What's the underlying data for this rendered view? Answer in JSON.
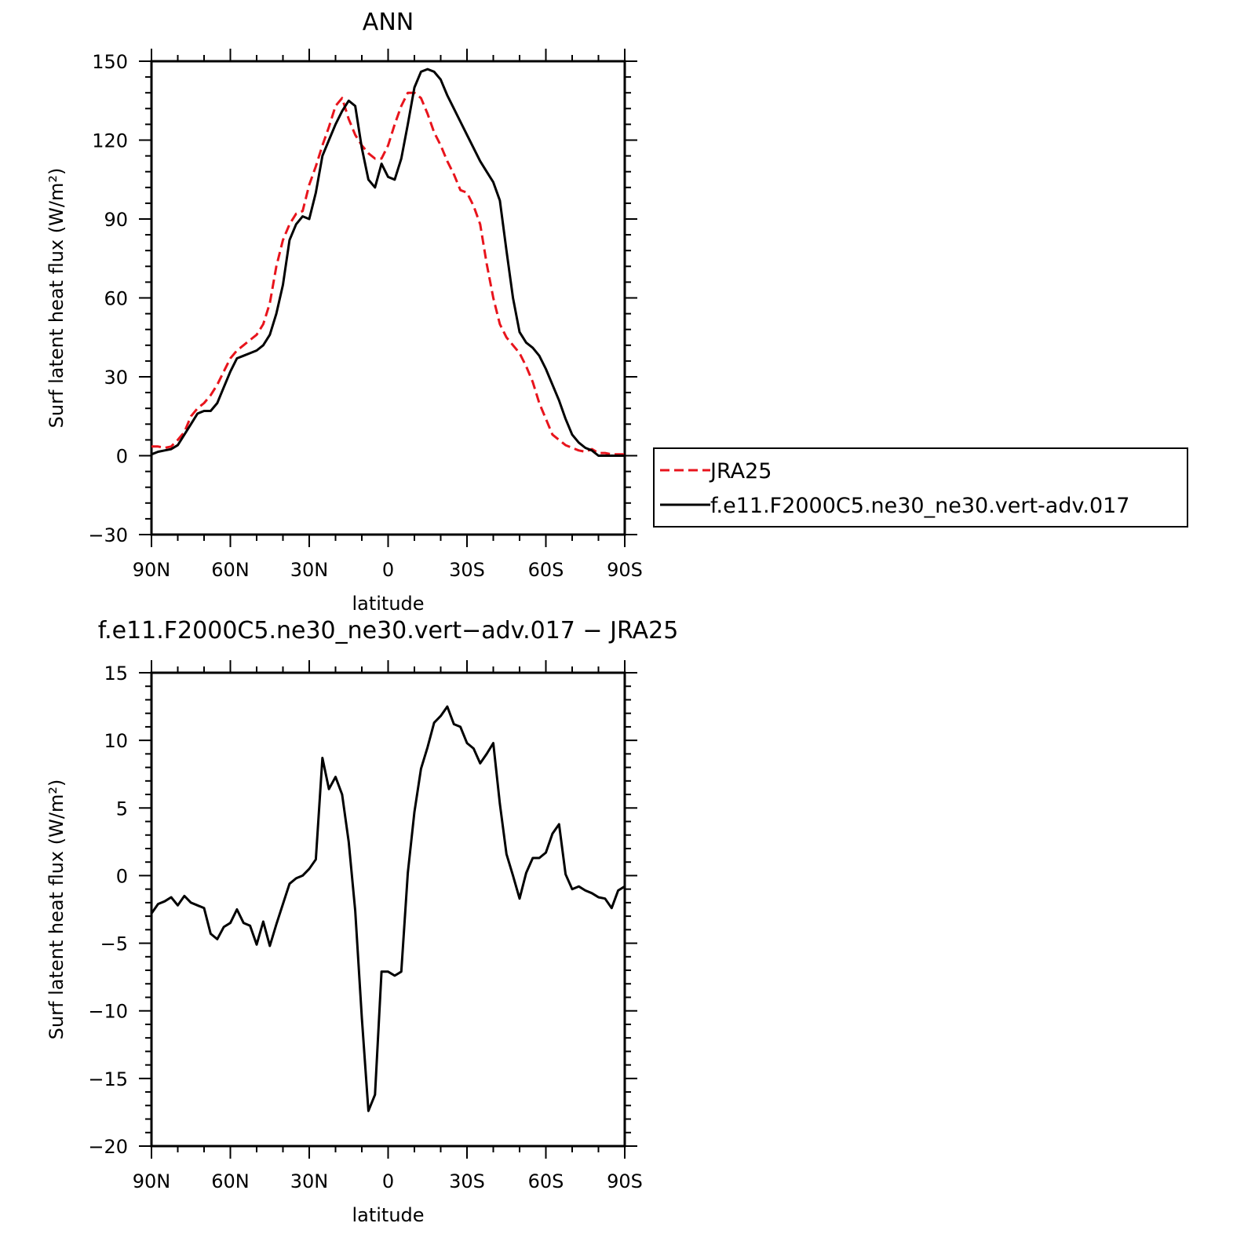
{
  "chart_data": [
    {
      "type": "line",
      "title": "ANN",
      "xlabel": "latitude",
      "ylabel": "Surf latent heat flux (W/m²)",
      "xlim": [
        90,
        -90
      ],
      "ylim": [
        -30,
        150
      ],
      "yticks": [
        -30,
        0,
        30,
        60,
        90,
        120,
        150
      ],
      "xticks": [
        {
          "value": 90,
          "label": "90N"
        },
        {
          "value": 60,
          "label": "60N"
        },
        {
          "value": 30,
          "label": "30N"
        },
        {
          "value": 0,
          "label": "0"
        },
        {
          "value": -30,
          "label": "30S"
        },
        {
          "value": -60,
          "label": "60S"
        },
        {
          "value": -90,
          "label": "90S"
        }
      ],
      "grid": false,
      "legend": "right",
      "series": [
        {
          "name": "JRA25",
          "color": "#e8141c",
          "dash": "dashed",
          "x": [
            90,
            87.5,
            85,
            82.5,
            80,
            77.5,
            75,
            72.5,
            70,
            67.5,
            65,
            62.5,
            60,
            57.5,
            55,
            52.5,
            50,
            47.5,
            45,
            42.5,
            40,
            37.5,
            35,
            32.5,
            30,
            27.5,
            25,
            22.5,
            20,
            17.5,
            15,
            12.5,
            10,
            7.5,
            5,
            2.5,
            0,
            -2.5,
            -5,
            -7.5,
            -10,
            -12.5,
            -15,
            -17.5,
            -20,
            -22.5,
            -25,
            -27.5,
            -30,
            -32.5,
            -35,
            -37.5,
            -40,
            -42.5,
            -45,
            -47.5,
            -50,
            -52.5,
            -55,
            -57.5,
            -60,
            -62.5,
            -65,
            -67.5,
            -70,
            -72.5,
            -75,
            -77.5,
            -80,
            -82.5,
            -85,
            -87.5,
            -90
          ],
          "y": [
            3.5,
            3.5,
            3.0,
            3.5,
            6,
            9,
            15,
            18,
            20,
            23,
            27,
            32,
            37,
            40,
            42,
            44,
            46,
            50,
            58,
            72,
            82,
            88,
            92,
            93,
            103,
            110,
            118,
            125,
            133,
            136,
            128,
            122,
            118,
            115,
            113,
            113,
            118,
            126,
            133,
            138,
            138,
            136,
            130,
            123,
            118,
            112,
            107,
            101,
            100,
            95,
            88,
            73,
            60,
            50,
            45,
            42,
            39,
            34,
            28,
            20,
            14,
            8,
            6,
            4,
            3,
            2,
            1.5,
            2.5,
            1,
            1,
            0.5,
            0.5,
            0.5
          ]
        },
        {
          "name": "f.e11.F2000C5.ne30_ne30.vert-adv.017",
          "color": "#000000",
          "dash": "solid",
          "x": [
            90,
            87.5,
            85,
            82.5,
            80,
            77.5,
            75,
            72.5,
            70,
            67.5,
            65,
            62.5,
            60,
            57.5,
            55,
            52.5,
            50,
            47.5,
            45,
            42.5,
            40,
            37.5,
            35,
            32.5,
            30,
            27.5,
            25,
            22.5,
            20,
            17.5,
            15,
            12.5,
            10,
            7.5,
            5,
            2.5,
            0,
            -2.5,
            -5,
            -7.5,
            -10,
            -12.5,
            -15,
            -17.5,
            -20,
            -22.5,
            -25,
            -27.5,
            -30,
            -32.5,
            -35,
            -37.5,
            -40,
            -42.5,
            -45,
            -47.5,
            -50,
            -52.5,
            -55,
            -57.5,
            -60,
            -62.5,
            -65,
            -67.5,
            -70,
            -72.5,
            -75,
            -77.5,
            -80,
            -82.5,
            -85,
            -87.5,
            -90
          ],
          "y": [
            0.5,
            1.5,
            2,
            2.5,
            4,
            8,
            12,
            16,
            17,
            17,
            20,
            26,
            32,
            37,
            38,
            39,
            40,
            42,
            46,
            54,
            65,
            82,
            88,
            91,
            90,
            100,
            114,
            120,
            126,
            131,
            135,
            133,
            117,
            105,
            102,
            111,
            106,
            105,
            113,
            126,
            140,
            146,
            147,
            146,
            143,
            137,
            132,
            127,
            122,
            117,
            112,
            108,
            104,
            97,
            78,
            60,
            47,
            43,
            41,
            38,
            33,
            27,
            21,
            14,
            8,
            5,
            3,
            2,
            0,
            0,
            0,
            0,
            0
          ]
        }
      ]
    },
    {
      "type": "line",
      "title": "f.e11.F2000C5.ne30_ne30.vert−adv.017 − JRA25",
      "xlabel": "latitude",
      "ylabel": "Surf latent heat flux (W/m²)",
      "xlim": [
        90,
        -90
      ],
      "ylim": [
        -20,
        15
      ],
      "yticks": [
        -20,
        -15,
        -10,
        -5,
        0,
        5,
        10,
        15
      ],
      "xticks": [
        {
          "value": 90,
          "label": "90N"
        },
        {
          "value": 60,
          "label": "60N"
        },
        {
          "value": 30,
          "label": "30N"
        },
        {
          "value": 0,
          "label": "0"
        },
        {
          "value": -30,
          "label": "30S"
        },
        {
          "value": -60,
          "label": "60S"
        },
        {
          "value": -90,
          "label": "90S"
        }
      ],
      "grid": false,
      "series": [
        {
          "color": "#000000",
          "dash": "solid",
          "x": [
            90,
            87.5,
            85,
            82.5,
            80,
            77.5,
            75,
            72.5,
            70,
            67.5,
            65,
            62.5,
            60,
            57.5,
            55,
            52.5,
            50,
            47.5,
            45,
            42.5,
            40,
            37.5,
            35,
            32.5,
            30,
            27.5,
            25,
            22.5,
            20,
            17.5,
            15,
            12.5,
            10,
            7.5,
            5,
            2.5,
            0,
            -2.5,
            -5,
            -7.5,
            -10,
            -12.5,
            -15,
            -17.5,
            -20,
            -22.5,
            -25,
            -27.5,
            -30,
            -32.5,
            -35,
            -37.5,
            -40,
            -42.5,
            -45,
            -47.5,
            -50,
            -52.5,
            -55,
            -57.5,
            -60,
            -62.5,
            -65,
            -67.5,
            -70,
            -72.5,
            -75,
            -77.5,
            -80,
            -82.5,
            -85,
            -87.5,
            -90
          ],
          "y": [
            -2.8,
            -2.1,
            -1.9,
            -1.6,
            -2.2,
            -1.5,
            -2.0,
            -2.2,
            -2.4,
            -4.3,
            -4.7,
            -3.8,
            -3.5,
            -2.5,
            -3.5,
            -3.7,
            -5.1,
            -3.4,
            -5.2,
            -3.6,
            -2.1,
            -0.6,
            -0.2,
            0.0,
            0.5,
            1.2,
            8.7,
            6.4,
            7.3,
            6.0,
            2.5,
            -2.6,
            -10.5,
            -17.4,
            -16.2,
            -7.1,
            -7.1,
            -7.4,
            -7.1,
            0.2,
            4.7,
            7.9,
            9.5,
            11.3,
            11.8,
            12.5,
            11.2,
            11.0,
            9.8,
            9.4,
            8.3,
            9.0,
            9.8,
            5.3,
            1.6,
            0.0,
            -1.7,
            0.2,
            1.3,
            1.3,
            1.7,
            3.1,
            3.8,
            0.1,
            -1.0,
            -0.8,
            -1.1,
            -1.3,
            -1.6,
            -1.7,
            -2.4,
            -1.1,
            -0.8
          ]
        }
      ]
    }
  ]
}
